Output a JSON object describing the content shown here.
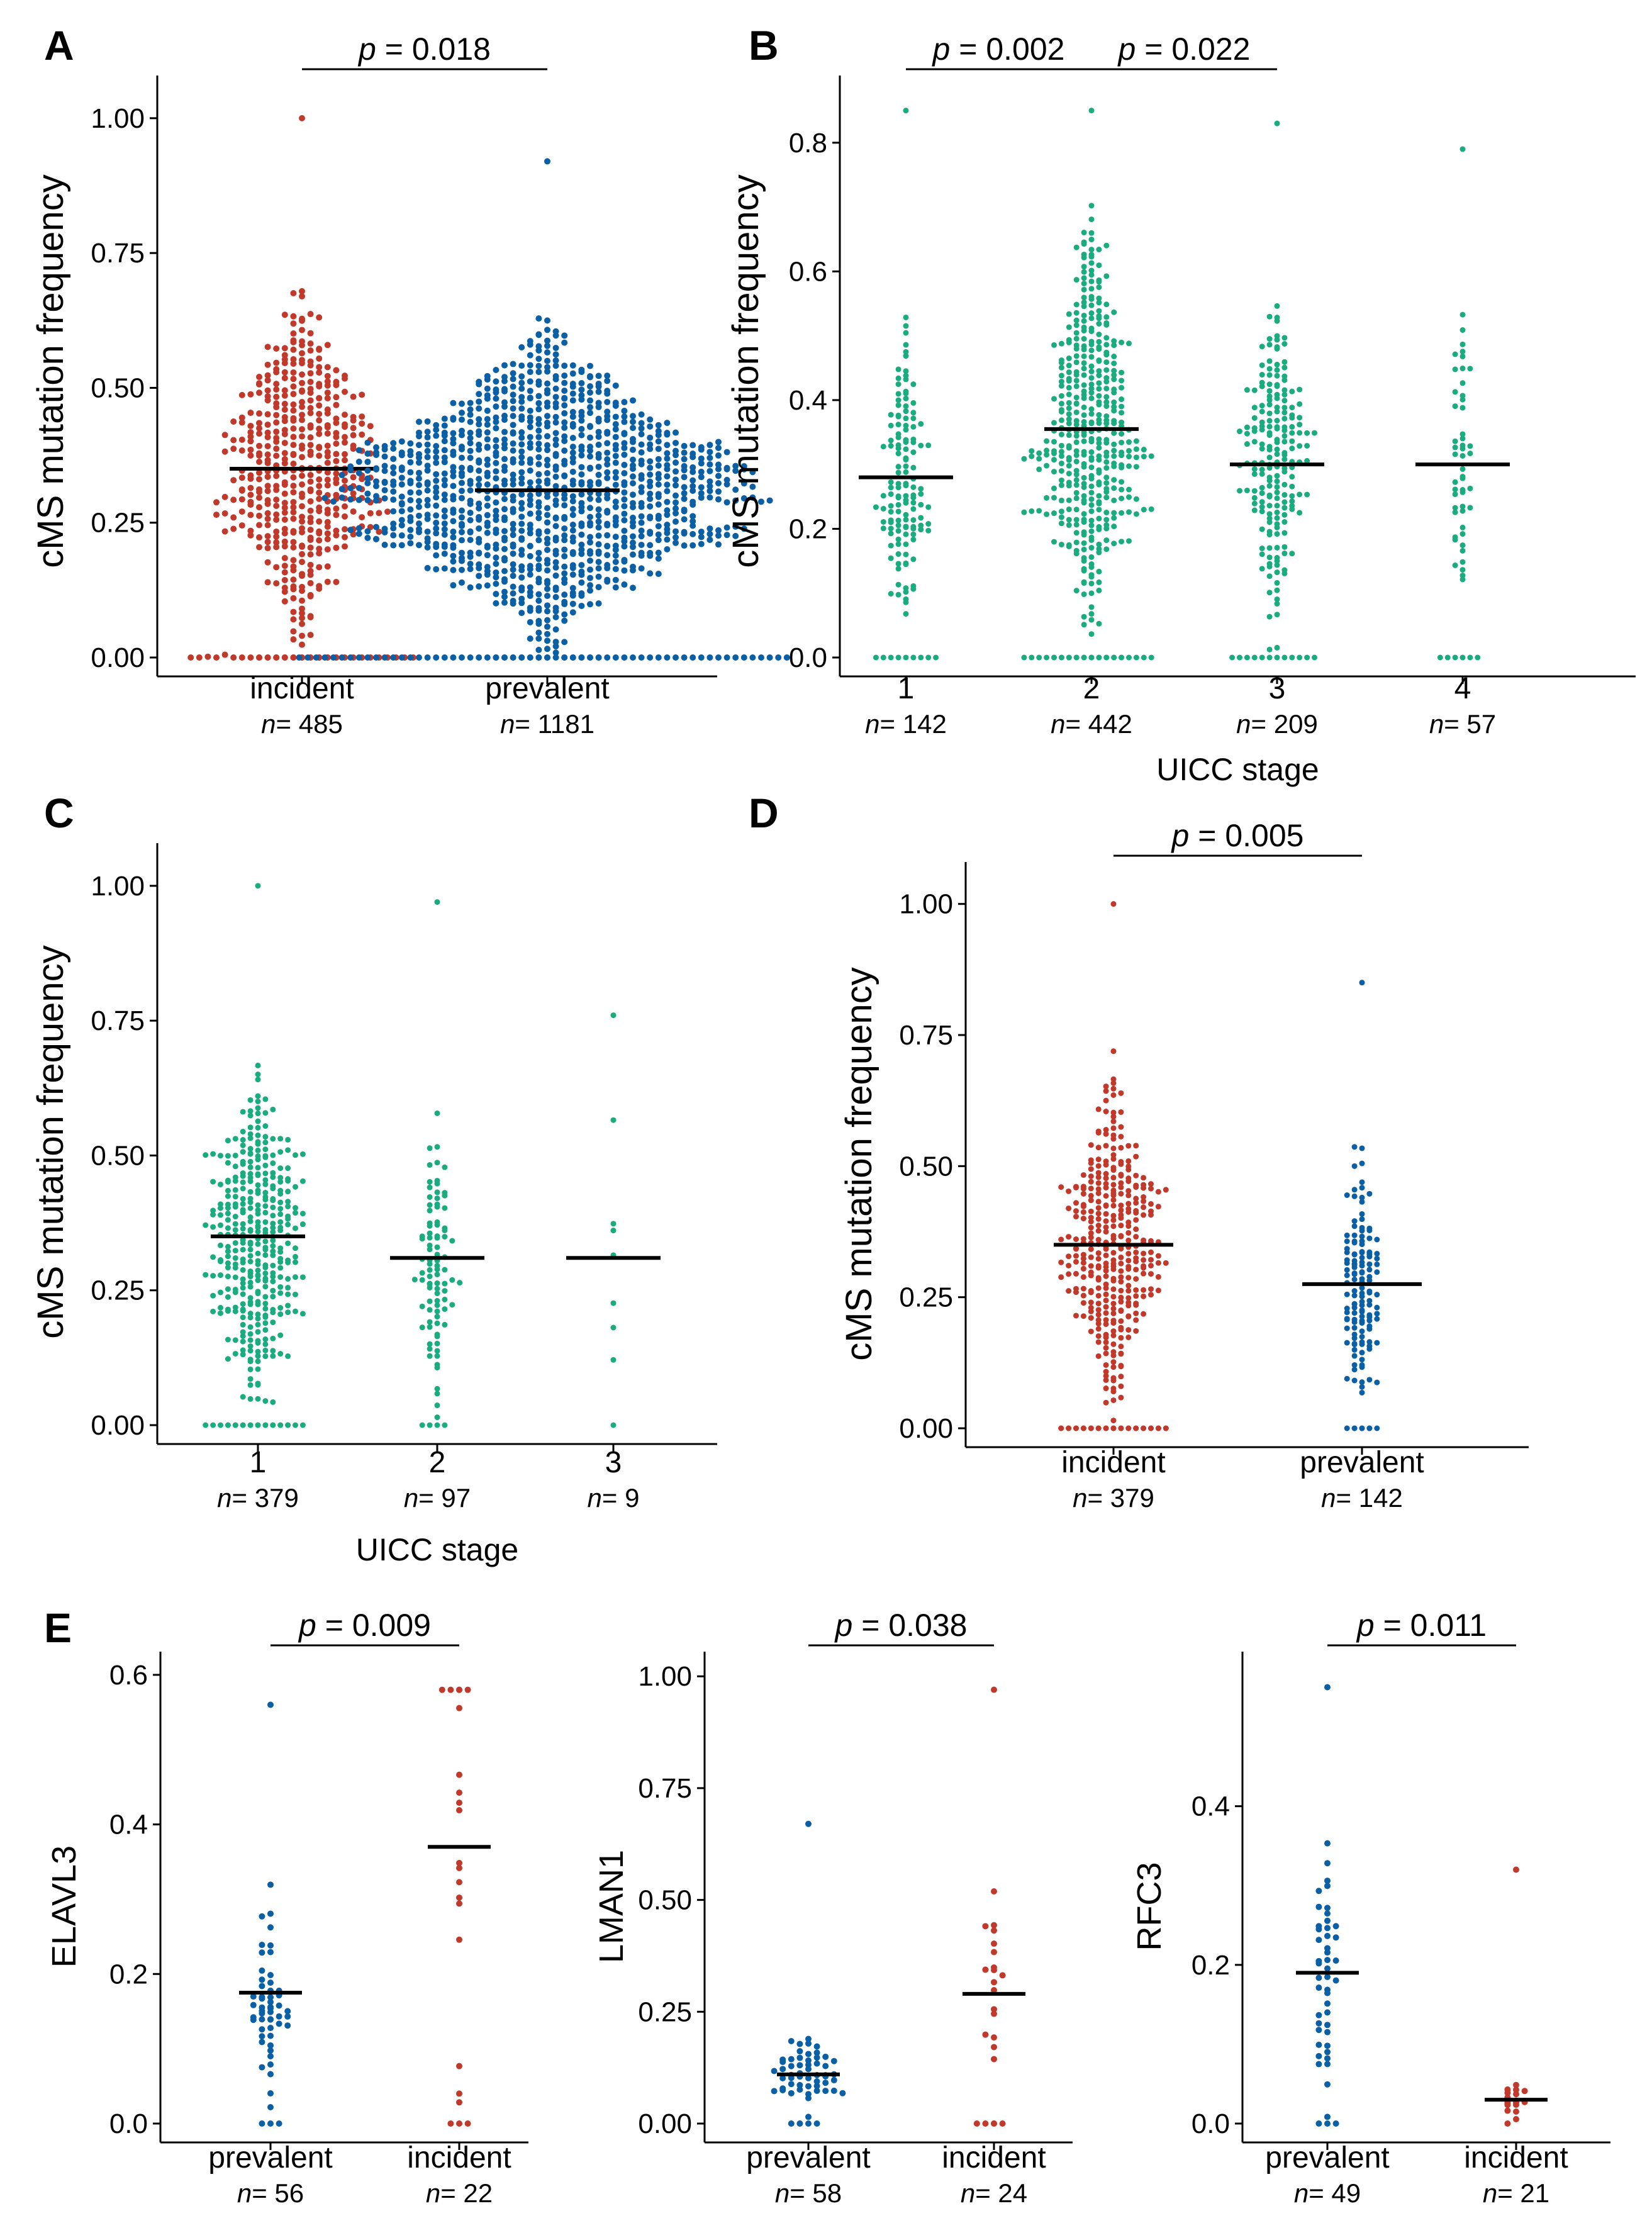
{
  "colors": {
    "red": "#c0392b",
    "blue": "#0b5fa5",
    "green": "#1aab7f",
    "axis": "#000000"
  },
  "chart_data": [
    {
      "panel": "A",
      "type": "scatter",
      "ylabel": "cMS mutation frequency",
      "xlabel": "",
      "ylim": [
        0,
        1.05
      ],
      "yticks": [
        "0.00",
        "0.25",
        "0.50",
        "0.75",
        "1.00"
      ],
      "categories": [
        {
          "label": "incident",
          "n_text": "= 485",
          "n": 485,
          "median": 0.35,
          "max": 1.0,
          "color": "red"
        },
        {
          "label": "prevalent",
          "n_text": "= 1181",
          "n": 1181,
          "median": 0.31,
          "max": 0.92,
          "color": "blue"
        }
      ],
      "comparisons": [
        {
          "from": 0,
          "to": 1,
          "p_text": " = 0.018"
        }
      ]
    },
    {
      "panel": "B",
      "type": "scatter",
      "ylabel": "cMS mutation frequency",
      "xlabel": "UICC stage",
      "ylim": [
        0,
        0.88
      ],
      "yticks": [
        "0.0",
        "0.2",
        "0.4",
        "0.6",
        "0.8"
      ],
      "categories": [
        {
          "label": "1",
          "n_text": "= 142",
          "n": 142,
          "median": 0.28,
          "max": 0.85,
          "color": "green"
        },
        {
          "label": "2",
          "n_text": "= 442",
          "n": 442,
          "median": 0.355,
          "max": 0.85,
          "color": "green"
        },
        {
          "label": "3",
          "n_text": "= 209",
          "n": 209,
          "median": 0.3,
          "max": 0.83,
          "color": "green"
        },
        {
          "label": "4",
          "n_text": "= 57",
          "n": 57,
          "median": 0.3,
          "max": 0.79,
          "color": "green"
        }
      ],
      "comparisons": [
        {
          "from": 0,
          "to": 1,
          "p_text": " = 0.002"
        },
        {
          "from": 1,
          "to": 2,
          "p_text": " = 0.022"
        }
      ]
    },
    {
      "panel": "C",
      "type": "scatter",
      "ylabel": "cMS mutation frequency",
      "xlabel": "UICC stage",
      "ylim": [
        0,
        1.05
      ],
      "yticks": [
        "0.00",
        "0.25",
        "0.50",
        "0.75",
        "1.00"
      ],
      "categories": [
        {
          "label": "1",
          "n_text": "= 379",
          "n": 379,
          "median": 0.35,
          "max": 1.0,
          "color": "green"
        },
        {
          "label": "2",
          "n_text": "= 97",
          "n": 97,
          "median": 0.31,
          "max": 0.97,
          "color": "green"
        },
        {
          "label": "3",
          "n_text": "= 9",
          "n": 9,
          "median": 0.31,
          "max": 0.76,
          "color": "green"
        }
      ],
      "comparisons": []
    },
    {
      "panel": "D",
      "type": "scatter",
      "ylabel": "cMS mutation frequency",
      "xlabel": "",
      "ylim": [
        0,
        1.05
      ],
      "yticks": [
        "0.00",
        "0.25",
        "0.50",
        "0.75",
        "1.00"
      ],
      "categories": [
        {
          "label": "incident",
          "n_text": "= 379",
          "n": 379,
          "median": 0.35,
          "max": 1.0,
          "color": "red"
        },
        {
          "label": "prevalent",
          "n_text": "= 142",
          "n": 142,
          "median": 0.275,
          "max": 0.85,
          "color": "blue"
        }
      ],
      "comparisons": [
        {
          "from": 0,
          "to": 1,
          "p_text": " = 0.005"
        }
      ]
    },
    {
      "panel": "E",
      "type": "scatter",
      "ylabel": "ELAVL3",
      "xlabel": "",
      "ylim": [
        0,
        0.61
      ],
      "yticks": [
        "0.0",
        "0.2",
        "0.4",
        "0.6"
      ],
      "categories": [
        {
          "label": "prevalent",
          "n_text": "= 56",
          "n": 56,
          "median": 0.175,
          "max": 0.56,
          "color": "blue"
        },
        {
          "label": "incident",
          "n_text": "= 22",
          "n": 22,
          "median": 0.37,
          "max": 0.58,
          "color": "red"
        }
      ],
      "comparisons": [
        {
          "from": 0,
          "to": 1,
          "p_text": " = 0.009"
        }
      ]
    },
    {
      "panel": "",
      "type": "scatter",
      "ylabel": "LMAN1",
      "xlabel": "",
      "ylim": [
        0,
        1.02
      ],
      "yticks": [
        "0.00",
        "0.25",
        "0.50",
        "0.75",
        "1.00"
      ],
      "categories": [
        {
          "label": "prevalent",
          "n_text": "= 58",
          "n": 58,
          "median": 0.11,
          "max": 0.67,
          "color": "blue"
        },
        {
          "label": "incident",
          "n_text": "= 24",
          "n": 24,
          "median": 0.29,
          "max": 0.97,
          "color": "red"
        }
      ],
      "comparisons": [
        {
          "from": 0,
          "to": 1,
          "p_text": " = 0.038"
        }
      ]
    },
    {
      "panel": "",
      "type": "scatter",
      "ylabel": "RFC3",
      "xlabel": "",
      "ylim": [
        0,
        0.575
      ],
      "yticks": [
        "0.0",
        "0.2",
        "0.4"
      ],
      "categories": [
        {
          "label": "prevalent",
          "n_text": "= 49",
          "n": 49,
          "median": 0.19,
          "max": 0.55,
          "color": "blue"
        },
        {
          "label": "incident",
          "n_text": "= 21",
          "n": 21,
          "median": 0.03,
          "max": 0.32,
          "color": "red"
        }
      ],
      "comparisons": [
        {
          "from": 0,
          "to": 1,
          "p_text": " = 0.011"
        }
      ]
    }
  ],
  "labels": {
    "p_symbol": "p",
    "n_symbol": "n"
  }
}
